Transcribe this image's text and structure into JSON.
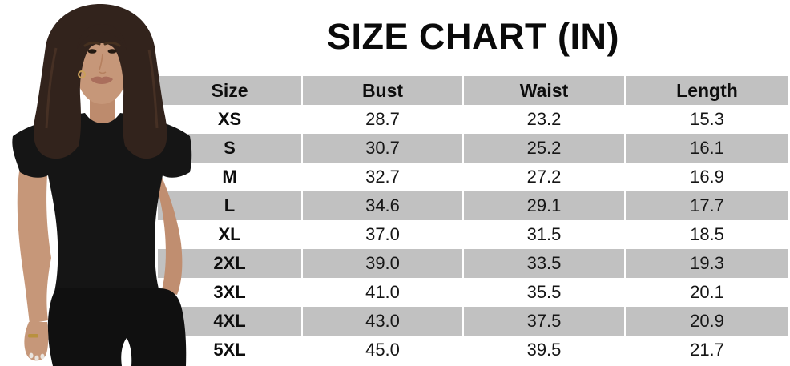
{
  "title": "SIZE CHART (IN)",
  "chart_data": {
    "type": "table",
    "title": "SIZE CHART (IN)",
    "unit": "inches",
    "columns": [
      "Size",
      "Bust",
      "Waist",
      "Length"
    ],
    "rows": [
      [
        "XS",
        "28.7",
        "23.2",
        "15.3"
      ],
      [
        "S",
        "30.7",
        "25.2",
        "16.1"
      ],
      [
        "M",
        "32.7",
        "27.2",
        "16.9"
      ],
      [
        "L",
        "34.6",
        "29.1",
        "17.7"
      ],
      [
        "XL",
        "37.0",
        "31.5",
        "18.5"
      ],
      [
        "2XL",
        "39.0",
        "33.5",
        "19.3"
      ],
      [
        "3XL",
        "41.0",
        "35.5",
        "20.1"
      ],
      [
        "4XL",
        "43.0",
        "37.5",
        "20.9"
      ],
      [
        "5XL",
        "45.0",
        "39.5",
        "21.7"
      ]
    ],
    "layout": {
      "header_background": "#c1c1c1",
      "alt_row_background": "#c1c1c1",
      "row_background": "#ffffff",
      "divider_color": "#ffffff",
      "grid": "alternating-row-shading"
    }
  },
  "model_photo": {
    "icon": "woman-model-in-black-tee-photo",
    "description_colors": {
      "hair": "#32231c",
      "skin": "#c69779",
      "garment": "#151515"
    }
  },
  "colors": {
    "title_text": "#0a0a0a",
    "table_text": "#161616",
    "row_gray": "#c1c1c1",
    "background": "#ffffff"
  }
}
